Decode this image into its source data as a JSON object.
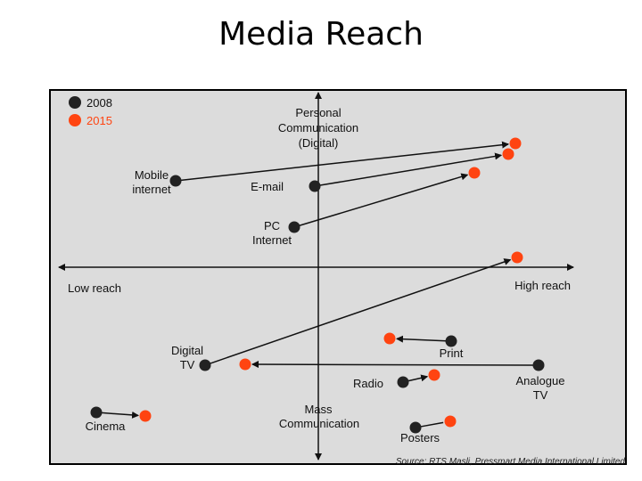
{
  "title": "Media Reach",
  "source": "Source: RTS Masli, Pressmart Media International Limited",
  "legend": [
    {
      "label": "2008",
      "color": "#222222"
    },
    {
      "label": "2015",
      "color": "#ff4411"
    }
  ],
  "axes": {
    "top": [
      "Personal",
      "Communication",
      "(Digital)"
    ],
    "bottom": [
      "Mass",
      "Communication"
    ],
    "left": "Low reach",
    "right": "High reach"
  },
  "chart_data": {
    "type": "scatter",
    "x_axis": {
      "left": "Low reach",
      "right": "High reach"
    },
    "y_axis": {
      "top": "Personal Communication (Digital)",
      "bottom": "Mass Communication"
    },
    "series": [
      {
        "name": "2008",
        "color": "#222222"
      },
      {
        "name": "2015",
        "color": "#ff4411"
      }
    ],
    "points": [
      {
        "label": "Mobile internet",
        "label_lines": [
          "Mobile",
          "internet"
        ],
        "p2008": [
          197,
          203
        ],
        "p2015": [
          578,
          161
        ],
        "arrow": true,
        "label_pos": "left"
      },
      {
        "label": "E-mail",
        "label_lines": [
          "E-mail"
        ],
        "p2008": [
          353,
          209
        ],
        "p2015": [
          570,
          173
        ],
        "arrow": true,
        "label_pos": "left"
      },
      {
        "label": "PC Internet",
        "label_lines": [
          "PC",
          "Internet"
        ],
        "p2008": [
          330,
          255
        ],
        "p2015": [
          532,
          194
        ],
        "arrow": true,
        "label_pos": "below"
      },
      {
        "label": "Digital TV",
        "label_lines": [
          "Digital",
          "TV"
        ],
        "p2008": [
          230,
          410
        ],
        "p2015": [
          580,
          289
        ],
        "arrow": true,
        "label_pos": "left"
      },
      {
        "label": "Print",
        "label_lines": [
          "Print"
        ],
        "p2008": [
          506,
          383
        ],
        "p2015": [
          437,
          380
        ],
        "arrow": true,
        "label_pos": "below"
      },
      {
        "label": "Analogue TV",
        "label_lines": [
          "Analogue",
          "TV"
        ],
        "p2008": [
          604,
          410
        ],
        "p2015": [
          275,
          409
        ],
        "arrow": true,
        "label_pos": "below"
      },
      {
        "label": "Radio",
        "label_lines": [
          "Radio"
        ],
        "p2008": [
          452,
          429
        ],
        "p2015": [
          487,
          421
        ],
        "arrow": true,
        "label_pos": "left"
      },
      {
        "label": "Cinema",
        "label_lines": [
          "Cinema"
        ],
        "p2008": [
          108,
          463
        ],
        "p2015": [
          163,
          467
        ],
        "arrow": true,
        "label_pos": "below"
      },
      {
        "label": "Posters",
        "label_lines": [
          "Posters"
        ],
        "p2008": [
          466,
          480
        ],
        "p2015": [
          505,
          473
        ],
        "arrow": false,
        "label_pos": "below"
      }
    ]
  }
}
